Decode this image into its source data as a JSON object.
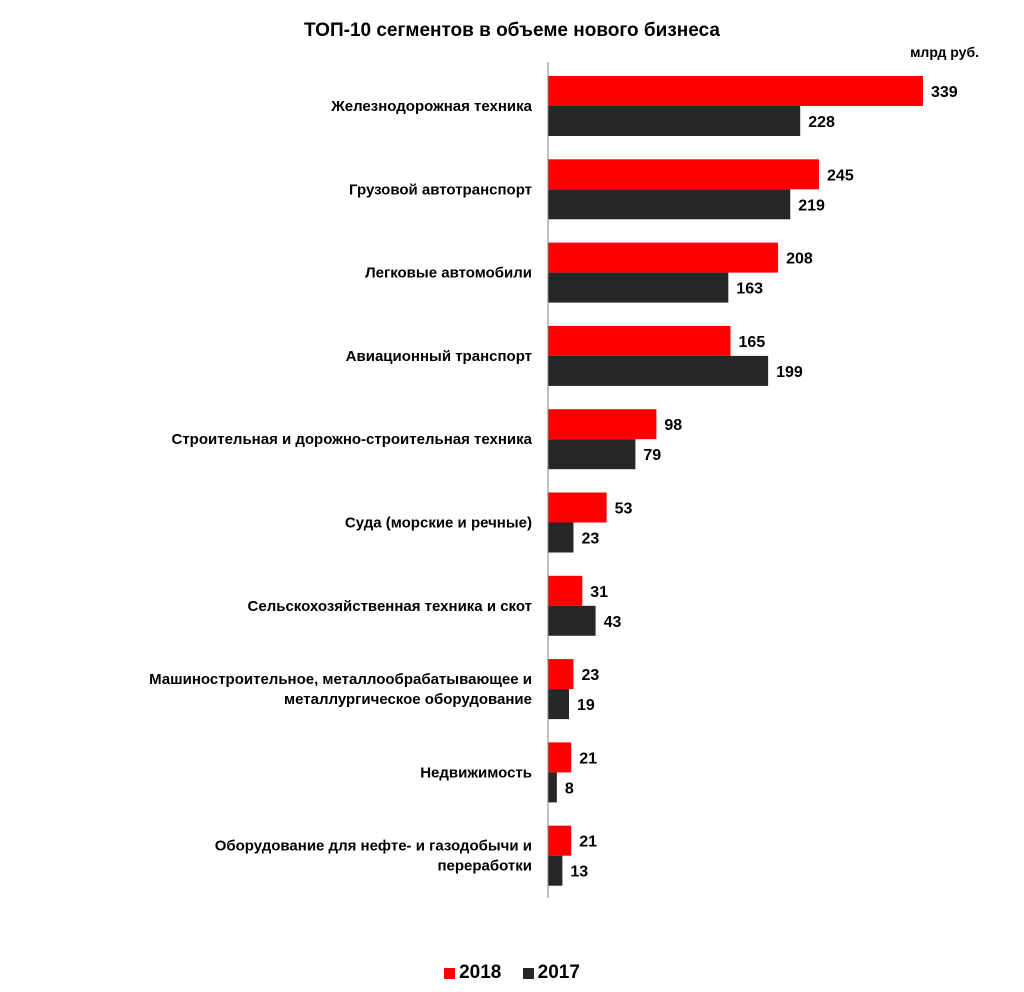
{
  "chart_data": {
    "type": "bar",
    "orientation": "horizontal",
    "title": "ТОП-10 сегментов в объеме нового бизнеса",
    "unit": "млрд руб.",
    "categories": [
      [
        "Железнодорожная техника"
      ],
      [
        "Грузовой автотранспорт"
      ],
      [
        "Легковые автомобили"
      ],
      [
        "Авиационный транспорт"
      ],
      [
        "Строительная и дорожно-строительная техника"
      ],
      [
        "Суда (морские и речные)"
      ],
      [
        "Сельскохозяйственная техника и скот"
      ],
      [
        "Машиностроительное, металлообрабатывающее и",
        "металлургическое оборудование"
      ],
      [
        "Недвижимость"
      ],
      [
        "Оборудование для нефте- и газодобычи и",
        "переработки"
      ]
    ],
    "series": [
      {
        "name": "2018",
        "color": "#ff0000",
        "values": [
          339,
          245,
          208,
          165,
          98,
          53,
          31,
          23,
          21,
          21
        ]
      },
      {
        "name": "2017",
        "color": "#262626",
        "values": [
          228,
          219,
          163,
          199,
          79,
          23,
          43,
          19,
          8,
          13
        ]
      }
    ],
    "xlim": [
      0,
      339
    ],
    "data_labels": true,
    "grid": false,
    "legend_position": "bottom"
  }
}
